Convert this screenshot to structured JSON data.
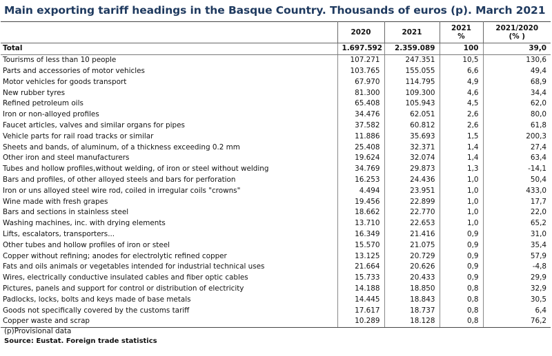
{
  "title": "Main exporting tariff headings in the Basque Country. Thousands of euros (p). March 2021",
  "headers": {
    "col_2020": "2020",
    "col_2021": "2021",
    "col_pct": "2021\n%",
    "col_var": "2021/2020\n(% )"
  },
  "total": {
    "name": "Total",
    "v2020": "1.697.592",
    "v2021": "2.359.089",
    "pct": "100",
    "var": "39,0"
  },
  "rows": [
    {
      "name": "Tourisms of less than 10 people",
      "v2020": "107.271",
      "v2021": "247.351",
      "pct": "10,5",
      "var": "130,6"
    },
    {
      "name": "Parts and accessories of motor vehicles",
      "v2020": "103.765",
      "v2021": "155.055",
      "pct": "6,6",
      "var": "49,4"
    },
    {
      "name": "Motor vehicles for goods transport",
      "v2020": "67.970",
      "v2021": "114.795",
      "pct": "4,9",
      "var": "68,9"
    },
    {
      "name": "New rubber tyres",
      "v2020": "81.300",
      "v2021": "109.300",
      "pct": "4,6",
      "var": "34,4"
    },
    {
      "name": "Refined petroleum oils",
      "v2020": "65.408",
      "v2021": "105.943",
      "pct": "4,5",
      "var": "62,0"
    },
    {
      "name": "Iron or non-alloyed profiles",
      "v2020": "34.476",
      "v2021": "62.051",
      "pct": "2,6",
      "var": "80,0"
    },
    {
      "name": "Faucet articles, valves and similar organs for pipes",
      "v2020": "37.582",
      "v2021": "60.812",
      "pct": "2,6",
      "var": "61,8"
    },
    {
      "name": "Vehicle parts for rail road tracks or similar",
      "v2020": "11.886",
      "v2021": "35.693",
      "pct": "1,5",
      "var": "200,3"
    },
    {
      "name": "Sheets and bands, of aluminum, of a thickness exceeding 0.2 mm",
      "v2020": "25.408",
      "v2021": "32.371",
      "pct": "1,4",
      "var": "27,4"
    },
    {
      "name": "Other iron and steel manufacturers",
      "v2020": "19.624",
      "v2021": "32.074",
      "pct": "1,4",
      "var": "63,4"
    },
    {
      "name": "Tubes and hollow profiles,without welding, of iron or steel without welding",
      "v2020": "34.769",
      "v2021": "29.873",
      "pct": "1,3",
      "var": "-14,1"
    },
    {
      "name": "Bars and profiles, of other alloyed steels and bars for perforation",
      "v2020": "16.253",
      "v2021": "24.436",
      "pct": "1,0",
      "var": "50,4"
    },
    {
      "name": "Iron or uns alloyed steel wire rod, coiled in irregular coils \"crowns\"",
      "v2020": "4.494",
      "v2021": "23.951",
      "pct": "1,0",
      "var": "433,0"
    },
    {
      "name": "Wine made with fresh grapes",
      "v2020": "19.456",
      "v2021": "22.899",
      "pct": "1,0",
      "var": "17,7"
    },
    {
      "name": "Bars and sections in stainless steel",
      "v2020": "18.662",
      "v2021": "22.770",
      "pct": "1,0",
      "var": "22,0"
    },
    {
      "name": "Washing machines, inc. with drying elements",
      "v2020": "13.710",
      "v2021": "22.653",
      "pct": "1,0",
      "var": "65,2"
    },
    {
      "name": "Lifts, escalators, transporters...",
      "v2020": "16.349",
      "v2021": "21.416",
      "pct": "0,9",
      "var": "31,0"
    },
    {
      "name": "Other tubes and hollow profiles of iron or steel",
      "v2020": "15.570",
      "v2021": "21.075",
      "pct": "0,9",
      "var": "35,4"
    },
    {
      "name": "Copper without refining; anodes for electrolytic refined copper",
      "v2020": "13.125",
      "v2021": "20.729",
      "pct": "0,9",
      "var": "57,9"
    },
    {
      "name": "Fats and oils animals or vegetables intended for industrial technical uses",
      "v2020": "21.664",
      "v2021": "20.626",
      "pct": "0,9",
      "var": "-4,8"
    },
    {
      "name": "Wires, electrically conductive insulated cables and fiber optic cables",
      "v2020": "15.733",
      "v2021": "20.433",
      "pct": "0,9",
      "var": "29,9"
    },
    {
      "name": "Pictures, panels and support for control or distribution of electricity",
      "v2020": "14.188",
      "v2021": "18.850",
      "pct": "0,8",
      "var": "32,9"
    },
    {
      "name": "Padlocks, locks, bolts and keys made of base metals",
      "v2020": "14.445",
      "v2021": "18.843",
      "pct": "0,8",
      "var": "30,5"
    },
    {
      "name": "Goods not specifically covered by the customs tariff",
      "v2020": "17.617",
      "v2021": "18.737",
      "pct": "0,8",
      "var": "6,4"
    },
    {
      "name": "Copper waste and scrap",
      "v2020": "10.289",
      "v2021": "18.128",
      "pct": "0,8",
      "var": "76,2"
    }
  ],
  "footnote": "(p)Provisional data",
  "source": "Source: Eustat. Foreign trade statistics"
}
